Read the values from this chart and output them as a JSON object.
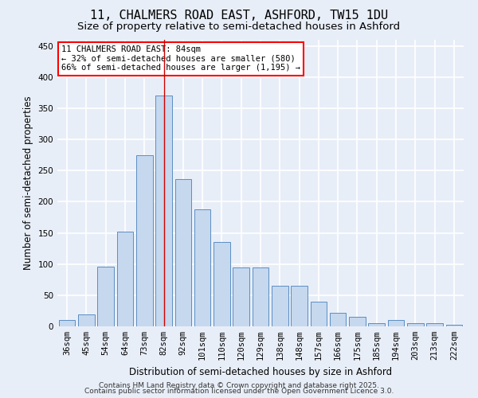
{
  "title": "11, CHALMERS ROAD EAST, ASHFORD, TW15 1DU",
  "subtitle": "Size of property relative to semi-detached houses in Ashford",
  "xlabel": "Distribution of semi-detached houses by size in Ashford",
  "ylabel": "Number of semi-detached properties",
  "categories": [
    "36sqm",
    "45sqm",
    "54sqm",
    "64sqm",
    "73sqm",
    "82sqm",
    "92sqm",
    "101sqm",
    "110sqm",
    "120sqm",
    "129sqm",
    "138sqm",
    "148sqm",
    "157sqm",
    "166sqm",
    "175sqm",
    "185sqm",
    "194sqm",
    "203sqm",
    "213sqm",
    "222sqm"
  ],
  "values": [
    10,
    19,
    96,
    152,
    275,
    370,
    237,
    188,
    135,
    95,
    95,
    65,
    65,
    40,
    22,
    15,
    5,
    10,
    5,
    5,
    3
  ],
  "bar_color": "#c5d8ee",
  "bar_edge_color": "#5b8ec4",
  "background_color": "#e8eef8",
  "grid_color": "#ffffff",
  "annotation_box_text": "11 CHALMERS ROAD EAST: 84sqm\n← 32% of semi-detached houses are smaller (580)\n66% of semi-detached houses are larger (1,195) →",
  "vline_x_index": 5,
  "vline_color": "#cc0000",
  "ylim": [
    0,
    460
  ],
  "yticks": [
    0,
    50,
    100,
    150,
    200,
    250,
    300,
    350,
    400,
    450
  ],
  "footer1": "Contains HM Land Registry data © Crown copyright and database right 2025.",
  "footer2": "Contains public sector information licensed under the Open Government Licence 3.0.",
  "title_fontsize": 11,
  "subtitle_fontsize": 9.5,
  "axis_label_fontsize": 8.5,
  "tick_fontsize": 7.5,
  "annotation_fontsize": 7.5,
  "footer_fontsize": 6.5
}
